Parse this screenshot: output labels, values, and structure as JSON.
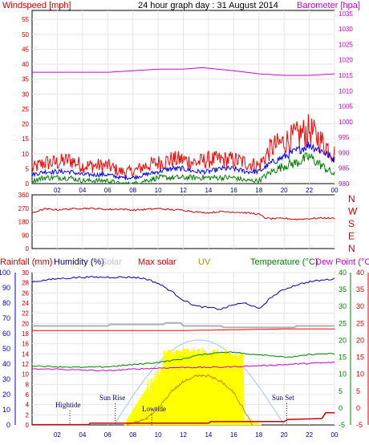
{
  "chart_data": [
    {
      "type": "line",
      "title": "24 hour graph day : 31 August 2014",
      "left_axis": {
        "label": "Windspeed [mph]",
        "ticks": [
          0,
          5,
          10,
          15,
          20,
          25,
          30,
          35,
          40,
          45,
          50,
          55
        ],
        "range": [
          0,
          58
        ]
      },
      "right_axis": {
        "label": "Barometer [hpa]",
        "ticks": [
          980,
          985,
          990,
          995,
          1000,
          1005,
          1010,
          1015,
          1020,
          1025,
          1030,
          1035
        ],
        "range": [
          980,
          1036
        ]
      },
      "x": {
        "range": [
          0,
          24
        ],
        "tick_labels": [
          "02",
          "04",
          "06",
          "08",
          "10",
          "12",
          "14",
          "16",
          "18",
          "20",
          "22",
          "00"
        ]
      },
      "series": [
        {
          "color": "#ff0000",
          "hours": [
            0,
            1,
            2,
            3,
            4,
            5,
            6,
            7,
            8,
            9,
            10,
            11,
            12,
            13,
            14,
            15,
            16,
            17,
            18,
            19,
            20,
            21,
            22,
            23,
            24
          ],
          "values": [
            5,
            7,
            7,
            8,
            6,
            6,
            6,
            4,
            4,
            6,
            7,
            8,
            8,
            7,
            8,
            8,
            8,
            7,
            6,
            12,
            14,
            16,
            18,
            14,
            10
          ]
        },
        {
          "color": "#0000ff",
          "hours": [
            0,
            1,
            2,
            3,
            4,
            5,
            6,
            7,
            8,
            9,
            10,
            11,
            12,
            13,
            14,
            15,
            16,
            17,
            18,
            19,
            20,
            21,
            22,
            23,
            24
          ],
          "values": [
            3,
            4,
            4,
            4,
            3,
            3,
            3,
            2,
            2,
            3,
            4,
            5,
            5,
            4,
            4,
            5,
            5,
            4,
            4,
            7,
            9,
            11,
            13,
            11,
            8
          ]
        },
        {
          "color": "#008000",
          "hours": [
            0,
            1,
            2,
            3,
            4,
            5,
            6,
            7,
            8,
            9,
            10,
            11,
            12,
            13,
            14,
            15,
            16,
            17,
            18,
            19,
            20,
            21,
            22,
            23,
            24
          ],
          "values": [
            1,
            2,
            2,
            2,
            1,
            1,
            1,
            0,
            0,
            1,
            2,
            2,
            2,
            2,
            2,
            2,
            2,
            1,
            1,
            4,
            6,
            7,
            9,
            6,
            3
          ]
        },
        {
          "color": "#cc00cc",
          "axis": "right",
          "hours": [
            0,
            2,
            4,
            6,
            8,
            10,
            12,
            13.5,
            16,
            18,
            20,
            22,
            24
          ],
          "values": [
            1016,
            1016,
            1016,
            1016,
            1016.5,
            1017,
            1017,
            1017.5,
            1016.5,
            1015.5,
            1015,
            1015,
            1015.5
          ]
        }
      ]
    },
    {
      "type": "line",
      "left_axis": {
        "ticks": [
          0,
          90,
          180,
          270,
          360
        ],
        "range": [
          0,
          360
        ]
      },
      "right_axis": {
        "labels": [
          "N",
          "W",
          "S",
          "E",
          "N"
        ]
      },
      "x": {
        "range": [
          0,
          24
        ]
      },
      "series": [
        {
          "color": "#cc0000",
          "hours": [
            0,
            1,
            2,
            3,
            4,
            5,
            6,
            7,
            8,
            9,
            10,
            11,
            12,
            13,
            14,
            15,
            16,
            17,
            18,
            18.5,
            19,
            20,
            21,
            22,
            23,
            24
          ],
          "values": [
            240,
            265,
            260,
            265,
            270,
            268,
            262,
            265,
            258,
            262,
            268,
            260,
            258,
            245,
            240,
            248,
            245,
            240,
            230,
            205,
            200,
            202,
            196,
            200,
            205,
            202
          ]
        }
      ]
    },
    {
      "type": "line",
      "legend_left": [
        "Rainfall (mm)",
        "Humidity (%)",
        "Solar"
      ],
      "legend_right": [
        "Max solar",
        "UV",
        "Temperature (°C)",
        "Dew Point (°C)"
      ],
      "axes": {
        "rainfall": {
          "ticks": [
            0,
            10,
            20,
            30,
            40,
            50,
            60,
            70,
            80,
            90,
            100
          ]
        },
        "humidity": {
          "ticks": [
            0,
            2,
            4,
            6,
            8,
            10,
            12,
            14,
            16,
            18,
            20,
            22,
            24,
            26,
            28,
            30
          ]
        },
        "temperature": {
          "ticks": [
            -5,
            0,
            5,
            10,
            15,
            20,
            25,
            30,
            35,
            40
          ]
        },
        "dewpoint": {
          "ticks": [
            -5,
            0,
            5,
            10,
            15,
            20,
            25,
            30,
            35,
            40
          ]
        }
      },
      "x": {
        "range": [
          0,
          24
        ],
        "tick_labels": [
          "02",
          "04",
          "06",
          "08",
          "10",
          "12",
          "14",
          "16",
          "18",
          "20",
          "22",
          "00"
        ]
      },
      "annotations": [
        "Hightide",
        "Sun Rise",
        "Lowtide",
        "Sun Set"
      ],
      "series": [
        {
          "name": "Humidity (%)",
          "color": "#0000a0",
          "hours": [
            0,
            2,
            4,
            6,
            8,
            9,
            10,
            11,
            12,
            13,
            14,
            15,
            16,
            17,
            18,
            19,
            20,
            21,
            22,
            23,
            24
          ],
          "values": [
            94,
            96,
            97,
            97,
            97,
            96,
            93,
            88,
            82,
            78,
            77,
            76,
            79,
            80,
            76,
            84,
            89,
            92,
            94,
            95,
            96
          ]
        },
        {
          "name": "Max solar",
          "color": "#ff0000",
          "hours": [
            0,
            4,
            8,
            12,
            16,
            20,
            24
          ],
          "values": [
            62,
            62,
            62,
            62,
            62.5,
            63,
            63
          ]
        },
        {
          "name": "Temperature (°C)",
          "color": "#008000",
          "hours": [
            0,
            2,
            4,
            6,
            8,
            10,
            12,
            13,
            14,
            15,
            16,
            17,
            18,
            19,
            20,
            21,
            22,
            23,
            24
          ],
          "values": [
            12.5,
            12.2,
            12.0,
            12.2,
            12.8,
            13.5,
            14.5,
            15.5,
            16.0,
            16.5,
            16.5,
            16.0,
            15.8,
            15.5,
            15.0,
            15.2,
            15.8,
            16.0,
            16.0
          ]
        },
        {
          "name": "Dew Point (°C)",
          "color": "#cc00cc",
          "hours": [
            0,
            2,
            4,
            6,
            8,
            10,
            12,
            14,
            16,
            18,
            20,
            22,
            24
          ],
          "values": [
            11.5,
            11.5,
            11.2,
            11.0,
            11.5,
            11.8,
            12.0,
            12.0,
            12.2,
            12.5,
            12.8,
            13.2,
            13.5
          ]
        },
        {
          "name": "UV",
          "color": "#cc8800",
          "hours": [
            7.5,
            9,
            10,
            11,
            12,
            13,
            14,
            15,
            16,
            17,
            17.5
          ],
          "values": [
            0,
            2,
            6,
            12,
            16,
            18,
            18,
            16,
            12,
            4,
            0
          ]
        }
      ]
    }
  ]
}
